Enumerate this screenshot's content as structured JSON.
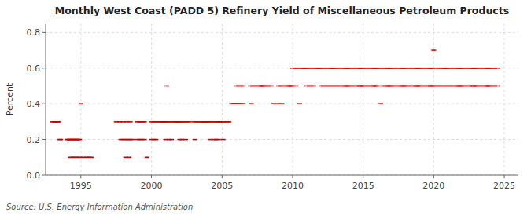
{
  "chart_data": {
    "type": "scatter",
    "title": "Monthly West Coast (PADD 5) Refinery Yield of Miscellaneous Petroleum Products",
    "y_label": "Percent",
    "annotations": [
      "Source: U.S. Energy Information Administration"
    ],
    "color": "#cc0000",
    "marker": "dash",
    "grid": true,
    "xlim": [
      1992.5,
      2026.0
    ],
    "ylim": [
      0.0,
      0.85
    ],
    "xticks": [
      1995,
      2000,
      2005,
      2010,
      2015,
      2020,
      2025
    ],
    "yticks": [
      {
        "value": 0.0,
        "label": "0.0"
      },
      0.2,
      0.4,
      0.6,
      0.8
    ],
    "x": [
      1993.0,
      1993.08,
      1993.17,
      1993.25,
      1993.33,
      1993.42,
      1993.5,
      1993.58,
      1994.0,
      1994.08,
      1994.17,
      1994.25,
      1994.33,
      1994.42,
      1994.5,
      1994.58,
      1994.67,
      1994.75,
      1994.83,
      1994.92,
      1994.25,
      1994.42,
      1994.58,
      1994.75,
      1994.92,
      1995.0,
      1995.17,
      1995.42,
      1995.58,
      1995.75,
      1997.5,
      1997.75,
      1998.0,
      1998.25,
      1998.5,
      1997.83,
      1998.0,
      1998.17,
      1998.33,
      1998.5,
      1998.67,
      1998.17,
      1998.42,
      1999.0,
      1999.17,
      1999.33,
      1999.5,
      1999.0,
      1999.17,
      1999.33,
      1999.5,
      1999.67,
      2000.0,
      2000.17,
      2000.33,
      2000.5,
      2000.67,
      2000.75,
      2000.83,
      2000.92,
      2000.0,
      2000.17,
      2000.33,
      2001.0,
      2001.17,
      2001.33,
      2001.5,
      2001.67,
      2001.75,
      2001.83,
      2001.92,
      2001.0,
      2001.25,
      2001.42,
      2002.0,
      2002.17,
      2002.33,
      2002.5,
      2002.67,
      2002.0,
      2002.17,
      2002.42,
      2003.0,
      2003.17,
      2003.33,
      2003.5,
      2003.67,
      2003.75,
      2003.83,
      2003.92,
      2003.08,
      2004.0,
      2004.17,
      2004.33,
      2004.5,
      2004.67,
      2004.75,
      2004.83,
      2004.92,
      2004.17,
      2004.42,
      2004.58,
      2004.75,
      2001.08,
      2005.0,
      2005.17,
      2005.33,
      2005.5,
      2005.08,
      2005.67,
      2005.83,
      2005.92,
      2006.0,
      2006.17,
      2006.33,
      2006.5,
      2006.0,
      2006.17,
      2006.33,
      2006.5,
      2007.0,
      2007.17,
      2007.33,
      2007.5,
      2007.67,
      2007.75,
      2007.83,
      2007.92,
      2007.08,
      2008.0,
      2008.17,
      2008.33,
      2008.5,
      2008.67,
      2009.0,
      2009.17,
      2009.33,
      2009.5,
      2009.67,
      2009.75,
      2009.83,
      2009.92,
      2009.0,
      2009.25,
      2010.0,
      2010.17,
      2010.33,
      2010.5,
      2010.67,
      2010.75,
      2010.83,
      2010.92,
      2010.0,
      2010.25,
      2010.5,
      2011.0,
      2011.17,
      2011.33,
      2011.5,
      2011.67,
      2011.75,
      2011.83,
      2011.92,
      2011.0,
      2011.17,
      2011.33,
      2011.5,
      2012.0,
      2012.17,
      2012.33,
      2012.5,
      2012.67,
      2012.75,
      2012.83,
      2012.92,
      2012.0,
      2012.17,
      2012.33,
      2012.5,
      2012.67,
      2012.83,
      2013.0,
      2013.17,
      2013.33,
      2013.5,
      2013.67,
      2013.75,
      2013.83,
      2013.92,
      2013.0,
      2013.17,
      2013.33,
      2013.5,
      2013.67,
      2013.75,
      2013.83,
      2013.92,
      2014.0,
      2014.17,
      2014.33,
      2014.5,
      2014.67,
      2014.75,
      2014.83,
      2014.92,
      2014.0,
      2014.17,
      2014.33,
      2014.5,
      2014.67,
      2014.75,
      2014.83,
      2014.92,
      2015.0,
      2015.17,
      2015.33,
      2015.5,
      2015.67,
      2015.75,
      2015.83,
      2015.92,
      2015.0,
      2015.17,
      2015.33,
      2015.5,
      2015.67,
      2015.75,
      2015.83,
      2015.92,
      2016.25,
      2016.0,
      2016.17,
      2016.33,
      2016.5,
      2016.67,
      2016.75,
      2016.83,
      2016.92,
      2016.0,
      2016.33,
      2016.5,
      2016.67,
      2016.75,
      2016.83,
      2016.92,
      2017.0,
      2017.17,
      2017.33,
      2017.5,
      2017.67,
      2017.75,
      2017.83,
      2017.92,
      2017.0,
      2017.17,
      2017.33,
      2017.5,
      2017.67,
      2017.75,
      2017.83,
      2017.92,
      2018.0,
      2018.17,
      2018.33,
      2018.5,
      2018.67,
      2018.75,
      2018.83,
      2018.92,
      2018.0,
      2018.17,
      2018.33,
      2018.5,
      2018.67,
      2018.75,
      2018.83,
      2018.92,
      2019.0,
      2019.17,
      2019.33,
      2019.5,
      2019.67,
      2019.75,
      2019.83,
      2019.92,
      2019.0,
      2019.17,
      2019.33,
      2019.5,
      2019.67,
      2019.75,
      2019.83,
      2019.92,
      2020.0,
      2020.17,
      2020.33,
      2020.5,
      2020.67,
      2020.75,
      2020.83,
      2020.92,
      2020.0,
      2020.17,
      2020.33,
      2020.5,
      2020.67,
      2020.83,
      2021.0,
      2021.17,
      2021.33,
      2021.5,
      2021.67,
      2021.75,
      2021.83,
      2021.92,
      2021.0,
      2021.17,
      2021.33,
      2021.5,
      2021.67,
      2021.75,
      2021.83,
      2021.92,
      2022.0,
      2022.17,
      2022.33,
      2022.5,
      2022.67,
      2022.75,
      2022.83,
      2022.92,
      2022.0,
      2022.17,
      2022.33,
      2022.5,
      2022.67,
      2022.75,
      2022.83,
      2022.92,
      2023.0,
      2023.17,
      2023.33,
      2023.5,
      2023.67,
      2023.75,
      2023.83,
      2023.92,
      2023.0,
      2023.17,
      2023.33,
      2023.5,
      2023.67,
      2023.75,
      2023.83,
      2023.92,
      2024.0,
      2024.17,
      2024.33,
      2024.5,
      2024.0,
      2024.17,
      2024.33,
      2024.5
    ],
    "values": [
      0.3,
      0.3,
      0.3,
      0.3,
      0.3,
      0.3,
      0.2,
      0.2,
      0.2,
      0.2,
      0.2,
      0.2,
      0.2,
      0.2,
      0.2,
      0.2,
      0.2,
      0.2,
      0.2,
      0.2,
      0.1,
      0.1,
      0.1,
      0.1,
      0.1,
      0.4,
      0.1,
      0.1,
      0.1,
      0.1,
      0.3,
      0.3,
      0.3,
      0.3,
      0.3,
      0.2,
      0.2,
      0.2,
      0.2,
      0.2,
      0.2,
      0.1,
      0.1,
      0.3,
      0.3,
      0.3,
      0.3,
      0.2,
      0.2,
      0.2,
      0.2,
      0.1,
      0.3,
      0.3,
      0.3,
      0.3,
      0.3,
      0.3,
      0.3,
      0.3,
      0.2,
      0.2,
      0.2,
      0.3,
      0.3,
      0.3,
      0.3,
      0.3,
      0.3,
      0.3,
      0.3,
      0.2,
      0.2,
      0.2,
      0.3,
      0.3,
      0.3,
      0.3,
      0.3,
      0.2,
      0.2,
      0.2,
      0.3,
      0.3,
      0.3,
      0.3,
      0.3,
      0.3,
      0.3,
      0.3,
      0.2,
      0.3,
      0.3,
      0.3,
      0.3,
      0.3,
      0.3,
      0.3,
      0.3,
      0.2,
      0.2,
      0.2,
      0.2,
      0.5,
      0.3,
      0.3,
      0.3,
      0.3,
      0.2,
      0.4,
      0.4,
      0.4,
      0.5,
      0.5,
      0.5,
      0.5,
      0.4,
      0.4,
      0.4,
      0.4,
      0.5,
      0.5,
      0.5,
      0.5,
      0.5,
      0.5,
      0.5,
      0.5,
      0.4,
      0.5,
      0.5,
      0.5,
      0.5,
      0.4,
      0.5,
      0.5,
      0.5,
      0.5,
      0.5,
      0.5,
      0.5,
      0.5,
      0.4,
      0.4,
      0.6,
      0.6,
      0.6,
      0.6,
      0.6,
      0.6,
      0.6,
      0.6,
      0.5,
      0.5,
      0.4,
      0.6,
      0.6,
      0.6,
      0.6,
      0.6,
      0.6,
      0.6,
      0.6,
      0.5,
      0.5,
      0.5,
      0.5,
      0.6,
      0.6,
      0.6,
      0.6,
      0.6,
      0.6,
      0.6,
      0.6,
      0.5,
      0.5,
      0.5,
      0.5,
      0.5,
      0.5,
      0.6,
      0.6,
      0.6,
      0.6,
      0.6,
      0.6,
      0.6,
      0.6,
      0.5,
      0.5,
      0.5,
      0.5,
      0.5,
      0.5,
      0.5,
      0.5,
      0.6,
      0.6,
      0.6,
      0.6,
      0.6,
      0.6,
      0.6,
      0.6,
      0.5,
      0.5,
      0.5,
      0.5,
      0.5,
      0.5,
      0.5,
      0.5,
      0.6,
      0.6,
      0.6,
      0.6,
      0.6,
      0.6,
      0.6,
      0.6,
      0.5,
      0.5,
      0.5,
      0.5,
      0.5,
      0.5,
      0.5,
      0.5,
      0.4,
      0.6,
      0.6,
      0.6,
      0.6,
      0.6,
      0.6,
      0.6,
      0.6,
      0.5,
      0.5,
      0.5,
      0.5,
      0.5,
      0.5,
      0.5,
      0.6,
      0.6,
      0.6,
      0.6,
      0.6,
      0.6,
      0.6,
      0.6,
      0.5,
      0.5,
      0.5,
      0.5,
      0.5,
      0.5,
      0.5,
      0.5,
      0.6,
      0.6,
      0.6,
      0.6,
      0.6,
      0.6,
      0.6,
      0.6,
      0.5,
      0.5,
      0.5,
      0.5,
      0.5,
      0.5,
      0.5,
      0.5,
      0.6,
      0.6,
      0.6,
      0.6,
      0.6,
      0.6,
      0.6,
      0.6,
      0.5,
      0.5,
      0.5,
      0.5,
      0.5,
      0.5,
      0.5,
      0.5,
      0.7,
      0.6,
      0.6,
      0.6,
      0.6,
      0.6,
      0.6,
      0.6,
      0.5,
      0.5,
      0.5,
      0.5,
      0.5,
      0.5,
      0.6,
      0.6,
      0.6,
      0.6,
      0.6,
      0.6,
      0.6,
      0.6,
      0.5,
      0.5,
      0.5,
      0.5,
      0.5,
      0.5,
      0.5,
      0.5,
      0.6,
      0.6,
      0.6,
      0.6,
      0.6,
      0.6,
      0.6,
      0.6,
      0.5,
      0.5,
      0.5,
      0.5,
      0.5,
      0.5,
      0.5,
      0.5,
      0.6,
      0.6,
      0.6,
      0.6,
      0.6,
      0.6,
      0.6,
      0.6,
      0.5,
      0.5,
      0.5,
      0.5,
      0.5,
      0.5,
      0.5,
      0.5,
      0.6,
      0.6,
      0.6,
      0.6,
      0.5,
      0.5,
      0.5,
      0.5
    ]
  }
}
